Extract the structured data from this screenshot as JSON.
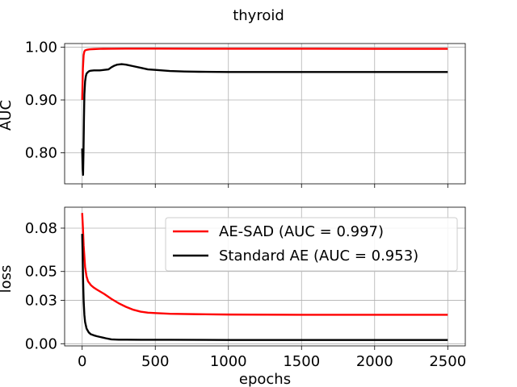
{
  "chart_data": {
    "type": "line",
    "title": "thyroid",
    "xlabel": "epochs",
    "grid": true,
    "colors": {
      "ae_sad": "#ff0000",
      "standard_ae": "#000000"
    },
    "panels": [
      {
        "ylabel": "AUC",
        "xlim": [
          -120,
          2620
        ],
        "ylim": [
          0.741,
          1.007
        ],
        "yticks": [
          0.8,
          0.9,
          1.0
        ],
        "ytick_labels": [
          "0.80",
          "0.90",
          "1.00"
        ],
        "xticks": [
          0,
          500,
          1000,
          1500,
          2000,
          2500
        ],
        "show_xtick_labels": false,
        "series": [
          {
            "key": "ae_sad",
            "x": [
              0,
              5,
              10,
              15,
              20,
              30,
              50,
              80,
              120,
              200,
              300,
              500,
              800,
              1200,
              1600,
              2000,
              2500
            ],
            "y": [
              0.9,
              0.96,
              0.985,
              0.992,
              0.994,
              0.995,
              0.996,
              0.9965,
              0.997,
              0.9972,
              0.9973,
              0.9973,
              0.9972,
              0.9972,
              0.9971,
              0.997,
              0.997
            ]
          },
          {
            "key": "standard_ae",
            "x": [
              0,
              3,
              6,
              9,
              12,
              15,
              20,
              25,
              30,
              40,
              50,
              60,
              80,
              100,
              120,
              150,
              180,
              200,
              220,
              240,
              270,
              300,
              350,
              400,
              450,
              500,
              600,
              700,
              800,
              1000,
              1200,
              1500,
              2000,
              2500
            ],
            "y": [
              0.808,
              0.77,
              0.758,
              0.8,
              0.86,
              0.91,
              0.935,
              0.945,
              0.95,
              0.953,
              0.955,
              0.9555,
              0.956,
              0.956,
              0.956,
              0.957,
              0.958,
              0.962,
              0.965,
              0.967,
              0.968,
              0.967,
              0.964,
              0.961,
              0.958,
              0.957,
              0.955,
              0.954,
              0.9535,
              0.953,
              0.953,
              0.953,
              0.953,
              0.953
            ]
          }
        ]
      },
      {
        "ylabel": "loss",
        "xlim": [
          -120,
          2620
        ],
        "ylim": [
          -0.0015,
          0.0945
        ],
        "yticks": [
          0.0,
          0.03,
          0.05,
          0.08
        ],
        "ytick_labels": [
          "0.00",
          "0.03",
          "0.05",
          "0.08"
        ],
        "xticks": [
          0,
          500,
          1000,
          1500,
          2000,
          2500
        ],
        "xtick_labels": [
          "0",
          "500",
          "1000",
          "1500",
          "2000",
          "2500"
        ],
        "series": [
          {
            "key": "ae_sad",
            "x": [
              0,
              5,
              10,
              20,
              30,
              40,
              60,
              80,
              100,
              150,
              200,
              250,
              300,
              350,
              400,
              450,
              500,
              600,
              800,
              1000,
              1500,
              2000,
              2500
            ],
            "y": [
              0.0905,
              0.0805,
              0.068,
              0.053,
              0.0465,
              0.0432,
              0.0405,
              0.0388,
              0.0375,
              0.0345,
              0.031,
              0.028,
              0.0255,
              0.0235,
              0.0222,
              0.0215,
              0.0212,
              0.0207,
              0.0204,
              0.0202,
              0.02,
              0.02,
              0.02
            ]
          },
          {
            "key": "standard_ae",
            "x": [
              0,
              3,
              6,
              10,
              15,
              20,
              30,
              45,
              60,
              80,
              100,
              130,
              160,
              200,
              250,
              300,
              400,
              600,
              1000,
              1500,
              2000,
              2500
            ],
            "y": [
              0.076,
              0.062,
              0.045,
              0.03,
              0.02,
              0.015,
              0.0105,
              0.0078,
              0.0065,
              0.0058,
              0.0052,
              0.0045,
              0.0038,
              0.003,
              0.0028,
              0.0028,
              0.0027,
              0.0027,
              0.0026,
              0.0026,
              0.0026,
              0.0026
            ]
          }
        ]
      }
    ],
    "legend": {
      "panel": 1,
      "placement": "upper-right",
      "entries": [
        {
          "key": "ae_sad",
          "label": "AE-SAD (AUC = 0.997)"
        },
        {
          "key": "standard_ae",
          "label": "Standard AE (AUC = 0.953)"
        }
      ]
    }
  }
}
